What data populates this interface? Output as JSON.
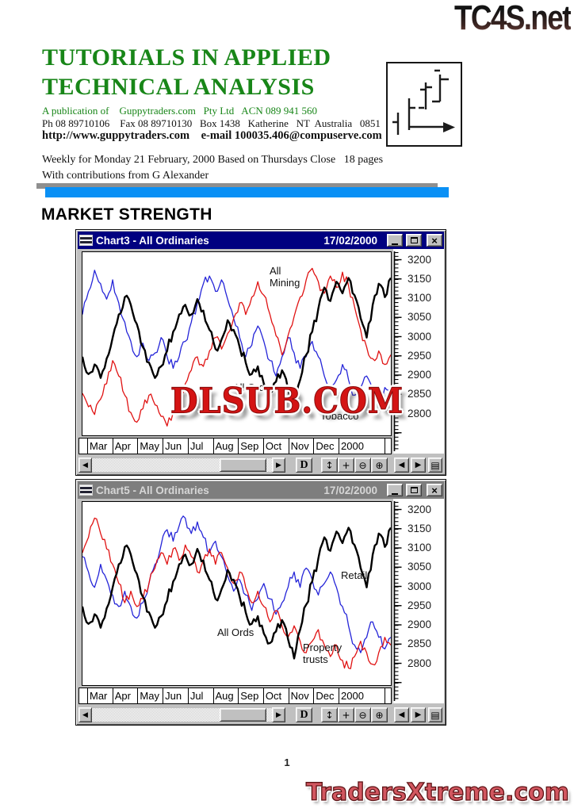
{
  "page": {
    "watermark_top": "TC4S.net",
    "title_line1": "TUTORIALS IN APPLIED",
    "title_line2": "TECHNICAL ANALYSIS",
    "publication_line": "A publication of    Guppytraders.com   Pty Ltd   ACN 089 941 560",
    "contact_line": "Ph 08 89710106    Fax 08 89710130   Box 1438   Katherine   NT  Australia   0851",
    "web_line": "http://www.guppytraders.com    e-mail 100035.406@compuserve.com",
    "issue_line": "Weekly for Monday 21 February, 2000 Based on Thursdays Close   18 pages",
    "contrib_line": "With contributions from G Alexander",
    "section_heading": "MARKET STRENGTH",
    "page_number": "1",
    "watermark_center": "DLSUB.COM",
    "watermark_bottom": "TradersXtreme.com",
    "accent_blue": "#0a90f5",
    "title_green": "#188618"
  },
  "windows": [
    {
      "title": "Chart3 - All Ordinaries",
      "date": "17/02/2000",
      "state": "active"
    },
    {
      "title": "Chart5 - All Ordinaries",
      "date": "17/02/2000",
      "state": "inactive"
    }
  ],
  "window_controls": {
    "minimize": "_",
    "maximize": "□",
    "close": "×"
  },
  "toolbar": {
    "d_label": "D",
    "scale_icon": "↕",
    "pan_icon": "+",
    "zoom_out_icon": "⊖",
    "zoom_in_icon": "⊕",
    "prev_icon": "◀",
    "next_icon": "▶",
    "layout_icon": "▤"
  },
  "axis": {
    "y_labels": [
      "3200",
      "3150",
      "3100",
      "3050",
      "3000",
      "2950",
      "2900",
      "2850",
      "2800"
    ],
    "x_labels": [
      "Mar",
      "Apr",
      "May",
      "Jun",
      "Jul",
      "Aug",
      "Sep",
      "Oct",
      "Nov",
      "Dec",
      "2000"
    ]
  },
  "chart_data": [
    {
      "type": "line",
      "title": "Chart3 - All Ordinaries",
      "date": "17/02/2000",
      "x_labels": [
        "Mar",
        "Apr",
        "May",
        "Jun",
        "Jul",
        "Aug",
        "Sep",
        "Oct",
        "Nov",
        "Dec",
        "2000"
      ],
      "ylim": [
        2740,
        3220
      ],
      "y_ticks": [
        3200,
        3150,
        3100,
        3050,
        3000,
        2950,
        2900,
        2850,
        2800
      ],
      "grid": false,
      "series": [
        {
          "name": "Tobacco",
          "color": "#2525d8",
          "width": 1.3,
          "values": [
            3060,
            3120,
            3175,
            3140,
            3100,
            3150,
            3090,
            3040,
            2990,
            2950,
            2985,
            2940,
            2960,
            3000,
            2950,
            2920,
            2950,
            2990,
            3040,
            3090,
            3140,
            3160,
            3120,
            3150,
            3100,
            3050,
            3000,
            2950,
            2980,
            3030,
            2990,
            2940,
            2900,
            2950,
            3000,
            2960,
            2920,
            2950,
            2990,
            2950,
            2900,
            2860,
            2890,
            2930,
            2890,
            2850,
            2870,
            2900,
            2850,
            2820,
            2870,
            2850
          ]
        },
        {
          "name": "All Mining",
          "color": "#e01212",
          "width": 1.3,
          "values": [
            2855,
            2820,
            2800,
            2840,
            2880,
            2940,
            2900,
            2850,
            2805,
            2780,
            2815,
            2850,
            2825,
            2795,
            2770,
            2805,
            2845,
            2880,
            2915,
            2950,
            2925,
            2965,
            3000,
            2970,
            3010,
            3050,
            3090,
            3060,
            3105,
            3145,
            3110,
            3060,
            3005,
            2955,
            3005,
            3055,
            3105,
            3150,
            3180,
            3145,
            3115,
            3160,
            3130,
            3170,
            3135,
            3080,
            3020,
            2975,
            2945,
            2965,
            2930,
            2955
          ]
        },
        {
          "name": "All Ords",
          "color": "#000000",
          "width": 2.4,
          "values": [
            2950,
            2905,
            2930,
            2895,
            2945,
            3000,
            3060,
            3105,
            3085,
            3035,
            2975,
            2935,
            2895,
            2925,
            2965,
            3015,
            3060,
            3085,
            3060,
            3100,
            3070,
            3020,
            2970,
            2995,
            3045,
            3020,
            2975,
            2935,
            2905,
            2925,
            2880,
            2855,
            2885,
            2915,
            2865,
            2815,
            2890,
            2955,
            3015,
            3075,
            3130,
            3095,
            3145,
            3115,
            3155,
            3110,
            3050,
            3000,
            3085,
            3140,
            3105,
            3155
          ]
        }
      ],
      "annotations": [
        {
          "text": "All\nMining",
          "x": 236,
          "y": 16
        },
        {
          "text": "All Ords",
          "x": 190,
          "y": 163
        },
        {
          "text": "Tobacco",
          "x": 300,
          "y": 199
        }
      ]
    },
    {
      "type": "line",
      "title": "Chart5 - All Ordinaries",
      "date": "17/02/2000",
      "x_labels": [
        "Mar",
        "Apr",
        "May",
        "Jun",
        "Jul",
        "Aug",
        "Sep",
        "Oct",
        "Nov",
        "Dec",
        "2000"
      ],
      "ylim": [
        2740,
        3220
      ],
      "y_ticks": [
        3200,
        3150,
        3100,
        3050,
        3000,
        2950,
        2900,
        2850,
        2800
      ],
      "grid": false,
      "series": [
        {
          "name": "Retail",
          "color": "#2525d8",
          "width": 1.3,
          "values": [
            3080,
            3040,
            3000,
            3060,
            3020,
            2980,
            2950,
            2990,
            2950,
            2920,
            2960,
            3010,
            3060,
            3110,
            3150,
            3120,
            3160,
            3180,
            3140,
            3170,
            3130,
            3090,
            3120,
            3080,
            3030,
            2990,
            3020,
            2980,
            2940,
            2970,
            3010,
            2970,
            2930,
            2960,
            3000,
            3040,
            3000,
            3050,
            3020,
            2980,
            3010,
            3040,
            3000,
            2950,
            2900,
            2850,
            2830,
            2870,
            2910,
            2870,
            2840,
            2870
          ]
        },
        {
          "name": "Property trusts",
          "color": "#e01212",
          "width": 1.3,
          "values": [
            3090,
            3130,
            3180,
            3140,
            3100,
            3060,
            3010,
            2960,
            2990,
            2950,
            2970,
            3010,
            3050,
            3090,
            3060,
            3100,
            3070,
            3110,
            3080,
            3040,
            3070,
            3100,
            3060,
            3090,
            3050,
            3010,
            3040,
            3000,
            2960,
            2990,
            2950,
            2910,
            2940,
            2900,
            2870,
            2900,
            2860,
            2830,
            2860,
            2890,
            2850,
            2820,
            2850,
            2810,
            2790,
            2820,
            2860,
            2830,
            2800,
            2830,
            2870,
            2850
          ]
        },
        {
          "name": "All Ords",
          "color": "#000000",
          "width": 2.4,
          "values": [
            2950,
            2905,
            2930,
            2895,
            2945,
            3000,
            3060,
            3105,
            3085,
            3035,
            2975,
            2935,
            2895,
            2925,
            2965,
            3015,
            3060,
            3085,
            3060,
            3100,
            3070,
            3020,
            2970,
            2995,
            3045,
            3020,
            2975,
            2935,
            2905,
            2925,
            2880,
            2855,
            2885,
            2915,
            2865,
            2815,
            2890,
            2955,
            3015,
            3075,
            3130,
            3095,
            3145,
            3115,
            3155,
            3110,
            3050,
            3000,
            3085,
            3140,
            3105,
            3155
          ]
        }
      ],
      "annotations": [
        {
          "text": "Retail",
          "x": 326,
          "y": 85
        },
        {
          "text": "All Ords",
          "x": 170,
          "y": 157
        },
        {
          "text": "Property\ntrusts",
          "x": 278,
          "y": 176
        }
      ]
    }
  ]
}
